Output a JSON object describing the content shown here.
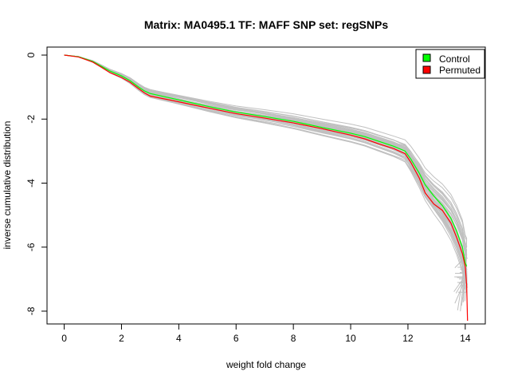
{
  "chart_data": {
    "type": "line",
    "title": "Matrix: MA0495.1 TF: MAFF SNP set: regSNPs",
    "xlabel": "weight fold change",
    "ylabel": "inverse cumulative distribution",
    "xlim": [
      -0.6,
      14.7
    ],
    "ylim": [
      -8.4,
      0.25
    ],
    "x_ticks": [
      0,
      2,
      4,
      6,
      8,
      10,
      12,
      14
    ],
    "y_ticks": [
      0,
      -2,
      -4,
      -6,
      -8
    ],
    "grid": false,
    "legend_position": "top-right",
    "legend": [
      {
        "label": "Control",
        "color": "#00ff00"
      },
      {
        "label": "Permuted",
        "color": "#ff0000"
      }
    ],
    "background_series_color": "#c0c0c0",
    "background_series_count": 40,
    "series": [
      {
        "name": "Control",
        "color": "#00ff00",
        "x": [
          0,
          0.5,
          1.0,
          1.3,
          1.6,
          2.0,
          2.3,
          2.6,
          2.8,
          3.0,
          3.5,
          4.0,
          5.0,
          6.0,
          7.0,
          8.0,
          9.0,
          10.0,
          10.5,
          11.0,
          11.5,
          11.9,
          12.1,
          12.4,
          12.6,
          12.9,
          13.2,
          13.5,
          13.7,
          13.9,
          14.0,
          14.05
        ],
        "y": [
          0,
          -0.05,
          -0.2,
          -0.35,
          -0.5,
          -0.65,
          -0.8,
          -1.0,
          -1.12,
          -1.2,
          -1.3,
          -1.4,
          -1.6,
          -1.78,
          -1.92,
          -2.07,
          -2.26,
          -2.44,
          -2.55,
          -2.7,
          -2.85,
          -3.0,
          -3.25,
          -3.7,
          -4.05,
          -4.4,
          -4.7,
          -5.1,
          -5.5,
          -6.0,
          -6.5,
          -6.6
        ]
      },
      {
        "name": "Permuted",
        "color": "#ff0000",
        "x": [
          0,
          0.5,
          1.0,
          1.3,
          1.6,
          2.0,
          2.3,
          2.6,
          2.8,
          3.0,
          3.5,
          4.0,
          5.0,
          6.0,
          7.0,
          8.0,
          9.0,
          10.0,
          10.5,
          11.0,
          11.5,
          11.9,
          12.1,
          12.4,
          12.6,
          12.9,
          13.2,
          13.5,
          13.7,
          13.9,
          14.0,
          14.05,
          14.08
        ],
        "y": [
          0,
          -0.06,
          -0.22,
          -0.38,
          -0.55,
          -0.7,
          -0.85,
          -1.05,
          -1.18,
          -1.28,
          -1.37,
          -1.46,
          -1.65,
          -1.83,
          -1.97,
          -2.12,
          -2.3,
          -2.5,
          -2.62,
          -2.78,
          -2.92,
          -3.08,
          -3.35,
          -3.85,
          -4.3,
          -4.65,
          -4.85,
          -5.25,
          -5.7,
          -6.2,
          -6.6,
          -7.2,
          -8.3
        ]
      }
    ]
  }
}
